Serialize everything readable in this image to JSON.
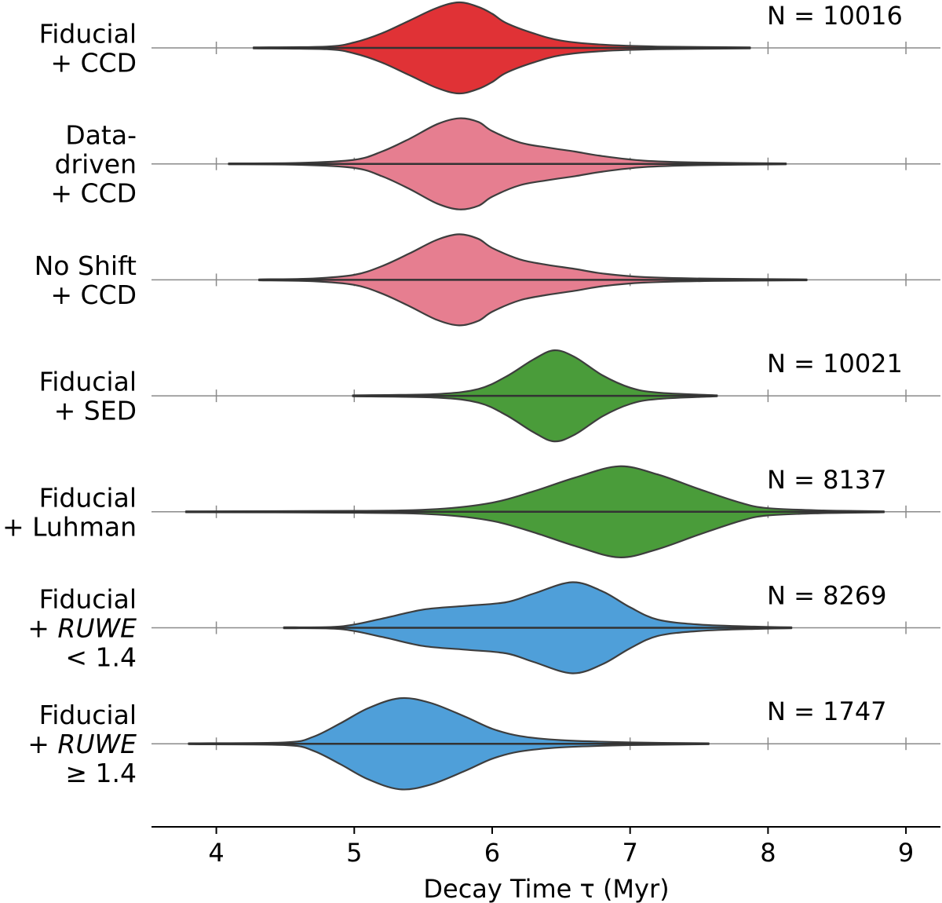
{
  "chart_data": {
    "type": "violin",
    "title": "",
    "xlabel": "Decay Time τ (Myr)",
    "xlim": [
      3.53,
      9.25
    ],
    "xticks": [
      4,
      5,
      6,
      7,
      8,
      9
    ],
    "xtick_labels": [
      "4",
      "5",
      "6",
      "7",
      "8",
      "9"
    ],
    "series": [
      {
        "name": "Fiducial + CCD",
        "label_lines": [
          "Fiducial",
          "+ CCD"
        ],
        "color": "#e03236",
        "n": "N = 10016",
        "min": 4.27,
        "max": 7.87,
        "profile": [
          [
            4.27,
            0.01
          ],
          [
            4.8,
            0.03
          ],
          [
            5.0,
            0.12
          ],
          [
            5.2,
            0.32
          ],
          [
            5.4,
            0.6
          ],
          [
            5.6,
            0.88
          ],
          [
            5.76,
            1.0
          ],
          [
            5.9,
            0.9
          ],
          [
            6.0,
            0.75
          ],
          [
            6.1,
            0.55
          ],
          [
            6.3,
            0.32
          ],
          [
            6.5,
            0.16
          ],
          [
            6.8,
            0.07
          ],
          [
            7.2,
            0.03
          ],
          [
            7.87,
            0.01
          ]
        ]
      },
      {
        "name": "Data-driven + CCD",
        "label_lines": [
          "Data-",
          "driven",
          "+ CCD"
        ],
        "color": "#e67e90",
        "n": "",
        "min": 4.09,
        "max": 8.13,
        "profile": [
          [
            4.09,
            0.01
          ],
          [
            4.6,
            0.02
          ],
          [
            5.0,
            0.09
          ],
          [
            5.2,
            0.27
          ],
          [
            5.4,
            0.55
          ],
          [
            5.6,
            0.87
          ],
          [
            5.76,
            1.0
          ],
          [
            5.9,
            0.92
          ],
          [
            6.0,
            0.72
          ],
          [
            6.2,
            0.47
          ],
          [
            6.4,
            0.36
          ],
          [
            6.6,
            0.27
          ],
          [
            6.8,
            0.17
          ],
          [
            7.1,
            0.07
          ],
          [
            7.5,
            0.03
          ],
          [
            8.13,
            0.01
          ]
        ]
      },
      {
        "name": "No Shift + CCD",
        "label_lines": [
          "No Shift",
          "+ CCD"
        ],
        "color": "#e67e90",
        "n": "",
        "min": 4.31,
        "max": 8.28,
        "profile": [
          [
            4.31,
            0.01
          ],
          [
            4.7,
            0.03
          ],
          [
            5.0,
            0.11
          ],
          [
            5.2,
            0.3
          ],
          [
            5.4,
            0.58
          ],
          [
            5.6,
            0.88
          ],
          [
            5.76,
            1.0
          ],
          [
            5.9,
            0.9
          ],
          [
            6.0,
            0.7
          ],
          [
            6.2,
            0.45
          ],
          [
            6.4,
            0.33
          ],
          [
            6.6,
            0.24
          ],
          [
            6.8,
            0.14
          ],
          [
            7.1,
            0.06
          ],
          [
            7.6,
            0.025
          ],
          [
            8.28,
            0.01
          ]
        ]
      },
      {
        "name": "Fiducial + SED",
        "label_lines": [
          "Fiducial",
          "+ SED"
        ],
        "color": "#4a9c3a",
        "n": "N = 10021",
        "min": 4.99,
        "max": 7.63,
        "profile": [
          [
            4.99,
            0.01
          ],
          [
            5.6,
            0.04
          ],
          [
            5.9,
            0.15
          ],
          [
            6.1,
            0.42
          ],
          [
            6.3,
            0.8
          ],
          [
            6.45,
            1.0
          ],
          [
            6.6,
            0.85
          ],
          [
            6.8,
            0.45
          ],
          [
            7.0,
            0.18
          ],
          [
            7.2,
            0.07
          ],
          [
            7.63,
            0.01
          ]
        ]
      },
      {
        "name": "Fiducial + Luhman",
        "label_lines": [
          "Fiducial",
          "+ Luhman"
        ],
        "color": "#4a9c3a",
        "n": "N = 8137",
        "min": 3.78,
        "max": 8.84,
        "profile": [
          [
            3.78,
            0.01
          ],
          [
            5.0,
            0.02
          ],
          [
            5.6,
            0.06
          ],
          [
            6.0,
            0.2
          ],
          [
            6.3,
            0.45
          ],
          [
            6.6,
            0.75
          ],
          [
            6.92,
            1.0
          ],
          [
            7.2,
            0.82
          ],
          [
            7.5,
            0.5
          ],
          [
            7.8,
            0.2
          ],
          [
            8.0,
            0.08
          ],
          [
            8.4,
            0.03
          ],
          [
            8.84,
            0.01
          ]
        ]
      },
      {
        "name": "Fiducial + RUWE < 1.4",
        "label_lines": [
          "Fiducial",
          "+ RUWE",
          "< 1.4"
        ],
        "color": "#4f9fd9",
        "n": "N = 8269",
        "min": 4.49,
        "max": 8.17,
        "profile": [
          [
            4.49,
            0.01
          ],
          [
            4.9,
            0.03
          ],
          [
            5.2,
            0.2
          ],
          [
            5.5,
            0.4
          ],
          [
            5.8,
            0.48
          ],
          [
            6.1,
            0.56
          ],
          [
            6.3,
            0.75
          ],
          [
            6.58,
            1.0
          ],
          [
            6.8,
            0.8
          ],
          [
            7.0,
            0.45
          ],
          [
            7.2,
            0.18
          ],
          [
            7.5,
            0.07
          ],
          [
            7.9,
            0.025
          ],
          [
            8.17,
            0.01
          ]
        ]
      },
      {
        "name": "Fiducial + RUWE ≥ 1.4",
        "label_lines": [
          "Fiducial",
          "+ RUWE",
          "≥ 1.4"
        ],
        "color": "#4f9fd9",
        "n": "N = 1747",
        "min": 3.8,
        "max": 7.57,
        "profile": [
          [
            3.8,
            0.01
          ],
          [
            4.5,
            0.03
          ],
          [
            4.7,
            0.15
          ],
          [
            4.9,
            0.45
          ],
          [
            5.1,
            0.78
          ],
          [
            5.33,
            1.0
          ],
          [
            5.55,
            0.9
          ],
          [
            5.8,
            0.6
          ],
          [
            6.0,
            0.33
          ],
          [
            6.2,
            0.17
          ],
          [
            6.5,
            0.08
          ],
          [
            7.0,
            0.03
          ],
          [
            7.57,
            0.01
          ]
        ]
      }
    ]
  }
}
